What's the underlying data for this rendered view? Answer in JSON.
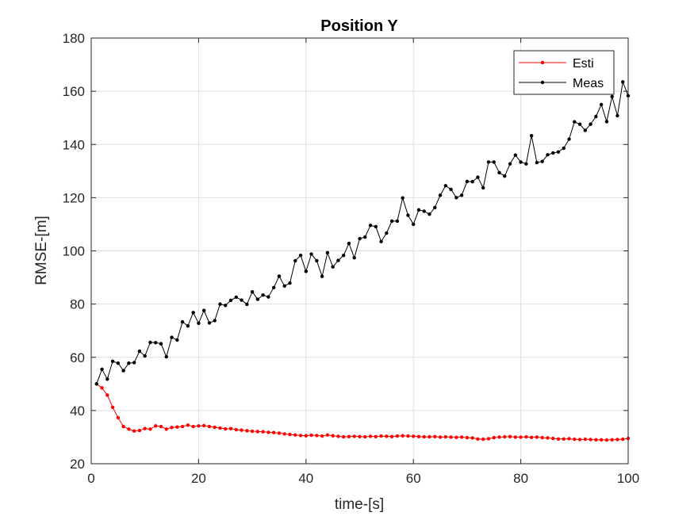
{
  "chart_data": {
    "type": "line",
    "title": "Position Y",
    "xlabel": "time-[s]",
    "ylabel": "RMSE-[m]",
    "xlim": [
      0,
      100
    ],
    "ylim": [
      20,
      180
    ],
    "xticks": [
      "0",
      "20",
      "40",
      "60",
      "80",
      "100"
    ],
    "yticks": [
      "20",
      "40",
      "60",
      "80",
      "100",
      "120",
      "140",
      "160",
      "180"
    ],
    "grid": true,
    "legend_position": "top-right",
    "x": [
      1,
      2,
      3,
      4,
      5,
      6,
      7,
      8,
      9,
      10,
      11,
      12,
      13,
      14,
      15,
      16,
      17,
      18,
      19,
      20,
      21,
      22,
      23,
      24,
      25,
      26,
      27,
      28,
      29,
      30,
      31,
      32,
      33,
      34,
      35,
      36,
      37,
      38,
      39,
      40,
      41,
      42,
      43,
      44,
      45,
      46,
      47,
      48,
      49,
      50,
      51,
      52,
      53,
      54,
      55,
      56,
      57,
      58,
      59,
      60,
      61,
      62,
      63,
      64,
      65,
      66,
      67,
      68,
      69,
      70,
      71,
      72,
      73,
      74,
      75,
      76,
      77,
      78,
      79,
      80,
      81,
      82,
      83,
      84,
      85,
      86,
      87,
      88,
      89,
      90,
      91,
      92,
      93,
      94,
      95,
      96,
      97,
      98,
      99,
      100
    ],
    "series": [
      {
        "name": "Esti",
        "color": "#ff0000",
        "values": [
          50,
          48.5,
          45.8,
          41.2,
          37.3,
          34,
          33,
          32.3,
          32.5,
          33.2,
          33,
          34.2,
          34,
          33,
          33.6,
          33.8,
          34,
          34.5,
          34,
          34.2,
          34.3,
          34,
          33.7,
          33.4,
          33.1,
          33.2,
          32.8,
          32.6,
          32.4,
          32.2,
          32.1,
          32,
          31.8,
          31.7,
          31.5,
          31.2,
          31,
          30.8,
          30.6,
          30.5,
          30.7,
          30.6,
          30.4,
          30.8,
          30.5,
          30.3,
          30.1,
          30.2,
          30.3,
          30.2,
          30.1,
          30.3,
          30.2,
          30.4,
          30.3,
          30.2,
          30.4,
          30.5,
          30.4,
          30.3,
          30.2,
          30.1,
          30.1,
          30.2,
          30,
          30.1,
          30,
          29.9,
          30,
          29.8,
          29.7,
          29.3,
          29.2,
          29.4,
          29.8,
          30,
          30.1,
          30.2,
          30,
          30,
          30.1,
          29.9,
          30,
          29.8,
          29.7,
          29.5,
          29.3,
          29.3,
          29.4,
          29.2,
          29.1,
          29.2,
          29.1,
          29,
          29,
          28.9,
          29,
          29.1,
          29.2,
          29.5
        ]
      },
      {
        "name": "Meas",
        "color": "#000000",
        "values": [
          50,
          55.5,
          51.8,
          58.5,
          57.8,
          55,
          57.8,
          58,
          62.3,
          60.5,
          65.6,
          65.5,
          65.1,
          60.2,
          67.5,
          66.5,
          73.3,
          71.8,
          76.8,
          72.8,
          77.6,
          72.9,
          73.8,
          80,
          79.5,
          81.4,
          82.6,
          81.5,
          79.9,
          84.6,
          81.8,
          83.4,
          82.7,
          86.2,
          90.5,
          86.8,
          87.9,
          96.3,
          98.3,
          92.3,
          98.8,
          96.3,
          90.4,
          99.3,
          94,
          96.4,
          98.3,
          102.8,
          97.4,
          104.6,
          105.2,
          109.6,
          109.1,
          103.5,
          106.7,
          111.2,
          111.2,
          119.9,
          113.4,
          110,
          115.4,
          114.9,
          113.8,
          116.3,
          120.9,
          124.5,
          123.1,
          120,
          120.9,
          126.1,
          126,
          127.7,
          123.7,
          133.4,
          133.4,
          129.4,
          128.1,
          132.7,
          136,
          133.4,
          132.7,
          143.3,
          133.2,
          133.6,
          136.1,
          136.8,
          137.2,
          138.6,
          142,
          148.5,
          147.6,
          145.3,
          147.6,
          150.5,
          155,
          148.6,
          158,
          150.8,
          163.5,
          158.3
        ]
      }
    ]
  }
}
